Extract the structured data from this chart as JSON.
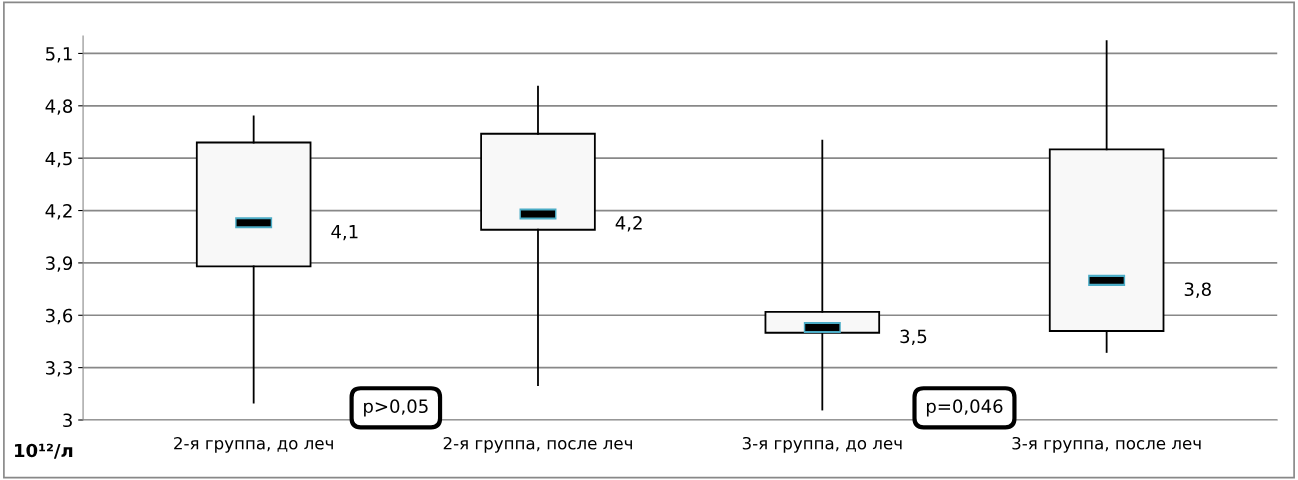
{
  "chart_data": {
    "type": "box",
    "ylabel": "10¹²/л",
    "categories": [
      "2-я группа, до леч",
      "2-я группа, после леч",
      "3-я группа, до леч",
      "3-я группа, после леч"
    ],
    "boxes": [
      {
        "low": 3.1,
        "q1": 3.88,
        "median": 4.13,
        "q3": 4.59,
        "high": 4.74
      },
      {
        "low": 3.2,
        "q1": 4.09,
        "median": 4.18,
        "q3": 4.64,
        "high": 4.91
      },
      {
        "low": 3.06,
        "q1": 3.5,
        "median": 3.53,
        "q3": 3.62,
        "high": 4.6
      },
      {
        "low": 3.39,
        "q1": 3.51,
        "median": 3.8,
        "q3": 4.55,
        "high": 5.17
      }
    ],
    "color": "#f8f8f8",
    "ylim": [
      3,
      5.2
    ],
    "yticks": [
      {
        "value": 3,
        "label": "3"
      },
      {
        "value": 3.3,
        "label": "3,3"
      },
      {
        "value": 3.6,
        "label": "3,6"
      },
      {
        "value": 3.9,
        "label": "3,9"
      },
      {
        "value": 4.2,
        "label": "4,2"
      },
      {
        "value": 4.5,
        "label": "4,5"
      },
      {
        "value": 4.8,
        "label": "4,8"
      },
      {
        "value": 5.1,
        "label": "5,1"
      }
    ],
    "grid": "y",
    "annotations": [
      "4,1",
      "4,2",
      "3,5",
      "3,8",
      "p>0,05",
      "p=0,046"
    ]
  }
}
